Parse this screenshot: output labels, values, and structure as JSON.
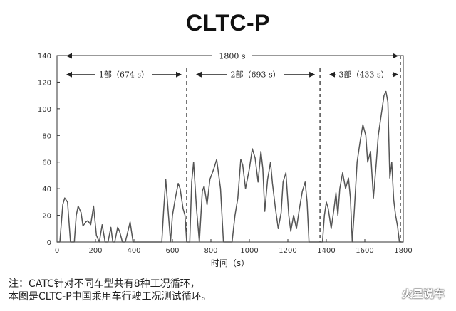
{
  "chart_data": {
    "type": "line",
    "title": "CLTC-P",
    "xlabel": "时间（s）",
    "ylabel": "",
    "xlim": [
      0,
      1800
    ],
    "ylim": [
      0,
      140
    ],
    "xticks": [
      0,
      200,
      400,
      600,
      800,
      1000,
      1200,
      1400,
      1600,
      1800
    ],
    "yticks": [
      0,
      20,
      40,
      60,
      80,
      100,
      120,
      140
    ],
    "grid": false,
    "legend": "none",
    "line_color": "#555555",
    "dividers": [
      674,
      1367
    ],
    "annotations": [
      {
        "label": "1800 s",
        "start": 0,
        "end": 1800,
        "level": 140
      },
      {
        "label": "1部（674 s）",
        "start": 0,
        "end": 674,
        "level": 126
      },
      {
        "label": "2部（693 s）",
        "start": 674,
        "end": 1367,
        "level": 126
      },
      {
        "label": "3部（433 s）",
        "start": 1367,
        "end": 1800,
        "level": 126
      }
    ],
    "series": [
      {
        "x": [
          0,
          15,
          30,
          40,
          55,
          70,
          90,
          100,
          110,
          125,
          135,
          150,
          160,
          175,
          190,
          205,
          220,
          235,
          250,
          265,
          280,
          290,
          300,
          315,
          325,
          340,
          355,
          365,
          380,
          395,
          405,
          415,
          420,
          430,
          440,
          455,
          470,
          480,
          490,
          500,
          510,
          520,
          530,
          545,
          555,
          565,
          575,
          590,
          600,
          615,
          630,
          640,
          655,
          665,
          674,
          690,
          700,
          710,
          725,
          740,
          755,
          765,
          780,
          795,
          815,
          830,
          850,
          865,
          880,
          895,
          910,
          925,
          940,
          955,
          965,
          980,
          1000,
          1015,
          1030,
          1045,
          1060,
          1070,
          1080,
          1095,
          1110,
          1120,
          1135,
          1150,
          1165,
          1175,
          1190,
          1205,
          1215,
          1230,
          1245,
          1260,
          1275,
          1290,
          1300,
          1310,
          1325,
          1340,
          1350,
          1367,
          1380,
          1390,
          1400,
          1410,
          1425,
          1440,
          1450,
          1460,
          1470,
          1485,
          1500,
          1515,
          1525,
          1535,
          1545,
          1560,
          1575,
          1590,
          1605,
          1615,
          1630,
          1645,
          1660,
          1670,
          1680,
          1690,
          1700,
          1710,
          1720,
          1730,
          1740,
          1750,
          1760,
          1770,
          1780,
          1790,
          1800
        ],
        "y": [
          0,
          0,
          28,
          33,
          30,
          0,
          0,
          20,
          27,
          22,
          12,
          15,
          16,
          13,
          27,
          5,
          0,
          13,
          0,
          0,
          11,
          0,
          0,
          11,
          8,
          0,
          0,
          6,
          15,
          0,
          0,
          0,
          0,
          0,
          0,
          0,
          0,
          0,
          0,
          0,
          0,
          0,
          0,
          0,
          25,
          47,
          28,
          0,
          20,
          33,
          44,
          40,
          25,
          20,
          0,
          0,
          45,
          60,
          25,
          0,
          38,
          42,
          28,
          47,
          55,
          62,
          40,
          0,
          0,
          0,
          0,
          20,
          33,
          62,
          58,
          40,
          55,
          70,
          63,
          45,
          68,
          55,
          23,
          47,
          60,
          44,
          26,
          10,
          22,
          45,
          52,
          20,
          8,
          20,
          10,
          25,
          38,
          45,
          30,
          0,
          0,
          0,
          0,
          0,
          0,
          20,
          30,
          25,
          10,
          25,
          37,
          20,
          40,
          52,
          40,
          48,
          33,
          0,
          22,
          60,
          75,
          88,
          80,
          60,
          68,
          33,
          60,
          80,
          90,
          100,
          110,
          113,
          105,
          48,
          60,
          32,
          20,
          12,
          0,
          0,
          0
        ]
      }
    ]
  },
  "notes": {
    "line1": "注：CATC针对不同车型共有8种工况循环，",
    "line2": "本图是CLTC-P中国乘用车行驶工况测试循环。"
  },
  "watermark": "火星说车"
}
